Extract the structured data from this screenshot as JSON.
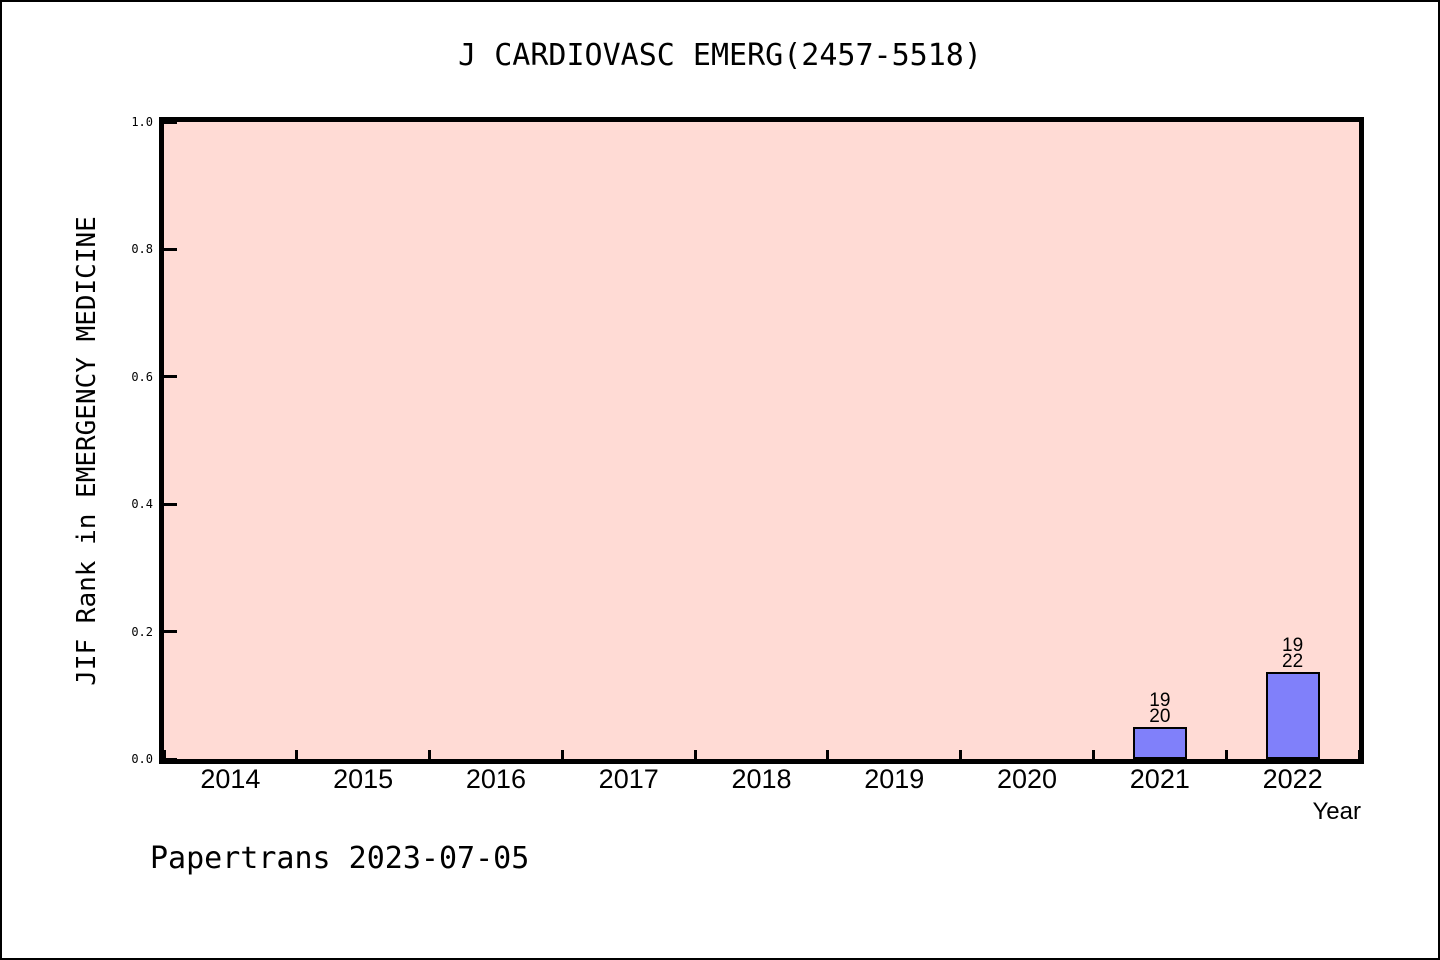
{
  "chart_data": {
    "type": "bar",
    "title": "J CARDIOVASC EMERG(2457-5518)",
    "xlabel": "Year",
    "ylabel": "JIF Rank in EMERGENCY MEDICINE",
    "categories": [
      "2014",
      "2015",
      "2016",
      "2017",
      "2018",
      "2019",
      "2020",
      "2021",
      "2022"
    ],
    "values": [
      null,
      null,
      null,
      null,
      null,
      null,
      null,
      0.05,
      0.136
    ],
    "bars": [
      {
        "category": "2021",
        "value": 0.05,
        "label_lines": [
          "19",
          "20"
        ]
      },
      {
        "category": "2022",
        "value": 0.136,
        "label_lines": [
          "19",
          "22"
        ]
      }
    ],
    "ylim": [
      0.0,
      1.0
    ],
    "yticks": [
      "0.0",
      "0.2",
      "0.4",
      "0.6",
      "0.8",
      "1.0"
    ],
    "grid": false,
    "legend": null,
    "footer": "Papertrans 2023-07-05",
    "colors": {
      "bar_fill": "#8080fa",
      "bar_edge": "#000000",
      "plot_background": "#ffdbd5",
      "axis_border": "#000000",
      "text": "#000000",
      "outer_background": "#ffffff"
    }
  }
}
